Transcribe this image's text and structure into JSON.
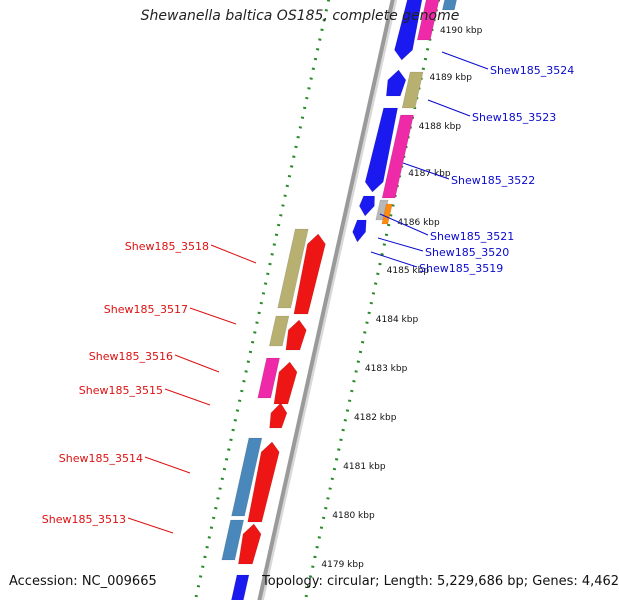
{
  "title": "Shewanella baltica OS185, complete genome",
  "footer": {
    "accession": "Accession: NC_009665",
    "topology": "Topology: circular; Length: 5,229,686 bp; Genes: 4,462"
  },
  "colors": {
    "backbone": "#9a9a9a",
    "ticks": "#2a8a2a",
    "forward_label": "#0a0acc",
    "reverse_label": "#dd1111",
    "blue_gene": "#1a1af0",
    "pink_gene": "#ee2aa8",
    "khaki_gene": "#b8b070",
    "red_gene": "#ee1515",
    "steel_gene": "#4a88bb",
    "orange_gene": "#ff8a10",
    "gray_gene": "#b8b8b8"
  },
  "scale_labels": [
    "4190 kbp",
    "4189 kbp",
    "4188 kbp",
    "4187 kbp",
    "4186 kbp",
    "4185 kbp",
    "4184 kbp",
    "4183 kbp",
    "4182 kbp",
    "4181 kbp",
    "4180 kbp",
    "4179 kbp"
  ],
  "forward_genes": [
    "Shew185_3524",
    "Shew185_3523",
    "Shew185_3522",
    "Shew185_3521",
    "Shew185_3520",
    "Shew185_3519"
  ],
  "reverse_genes": [
    "Shew185_3518",
    "Shew185_3517",
    "Shew185_3516",
    "Shew185_3515",
    "Shew185_3514",
    "Shew185_3513"
  ]
}
